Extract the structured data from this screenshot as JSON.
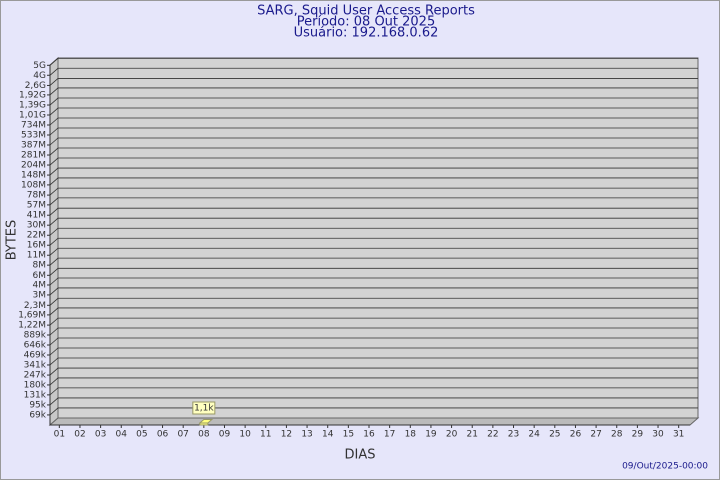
{
  "chart_data": {
    "type": "bar",
    "title": "SARG, Squid User Access Reports",
    "subtitle": "Período: 08 Out 2025",
    "subtitle2": "Usuário: 192.168.0.62",
    "y_label": "BYTES",
    "x_label": "DIAS",
    "footer": "09/Out/2025-00:00",
    "log_scale": true,
    "grid": true,
    "color": "#ffff80",
    "categories": [
      "01",
      "02",
      "03",
      "04",
      "05",
      "06",
      "07",
      "08",
      "09",
      "10",
      "11",
      "12",
      "13",
      "14",
      "15",
      "16",
      "17",
      "18",
      "19",
      "20",
      "21",
      "22",
      "23",
      "24",
      "25",
      "26",
      "27",
      "28",
      "29",
      "30",
      "31"
    ],
    "values": [
      null,
      null,
      null,
      null,
      null,
      null,
      null,
      1100,
      null,
      null,
      null,
      null,
      null,
      null,
      null,
      null,
      null,
      null,
      null,
      null,
      null,
      null,
      null,
      null,
      null,
      null,
      null,
      null,
      null,
      null,
      null
    ],
    "value_labels": [
      null,
      null,
      null,
      null,
      null,
      null,
      null,
      "1,1k",
      null,
      null,
      null,
      null,
      null,
      null,
      null,
      null,
      null,
      null,
      null,
      null,
      null,
      null,
      null,
      null,
      null,
      null,
      null,
      null,
      null,
      null,
      null
    ],
    "ylim": [
      50000,
      5000000000
    ],
    "yticks": [
      {
        "value": 69000,
        "label": "69k"
      },
      {
        "value": 95000,
        "label": "95k"
      },
      {
        "value": 131000,
        "label": "131k"
      },
      {
        "value": 180000,
        "label": "180k"
      },
      {
        "value": 247000,
        "label": "247k"
      },
      {
        "value": 341000,
        "label": "341k"
      },
      {
        "value": 469000,
        "label": "469k"
      },
      {
        "value": 646000,
        "label": "646k"
      },
      {
        "value": 889000,
        "label": "889k"
      },
      {
        "value": 1220000,
        "label": "1,22M"
      },
      {
        "value": 1690000,
        "label": "1,69M"
      },
      {
        "value": 2300000,
        "label": "2,3M"
      },
      {
        "value": 3200000,
        "label": "3M"
      },
      {
        "value": 4400000,
        "label": "4M"
      },
      {
        "value": 6000000,
        "label": "6M"
      },
      {
        "value": 8300000,
        "label": "8M"
      },
      {
        "value": 11400000,
        "label": "11M"
      },
      {
        "value": 15700000,
        "label": "16M"
      },
      {
        "value": 21600000,
        "label": "22M"
      },
      {
        "value": 29800000,
        "label": "30M"
      },
      {
        "value": 41000000,
        "label": "41M"
      },
      {
        "value": 57000000,
        "label": "57M"
      },
      {
        "value": 78000000,
        "label": "78M"
      },
      {
        "value": 108000000,
        "label": "108M"
      },
      {
        "value": 148000000,
        "label": "148M"
      },
      {
        "value": 204000000,
        "label": "204M"
      },
      {
        "value": 281000000,
        "label": "281M"
      },
      {
        "value": 387000000,
        "label": "387M"
      },
      {
        "value": 533000000,
        "label": "533M"
      },
      {
        "value": 734000000,
        "label": "734M"
      },
      {
        "value": 1010000000,
        "label": "1,01G"
      },
      {
        "value": 1390000000,
        "label": "1,39G"
      },
      {
        "value": 1920000000,
        "label": "1,92G"
      },
      {
        "value": 2600000000,
        "label": "2,6G"
      },
      {
        "value": 3600000000,
        "label": "4G"
      },
      {
        "value": 4950000000,
        "label": "5G"
      }
    ]
  }
}
